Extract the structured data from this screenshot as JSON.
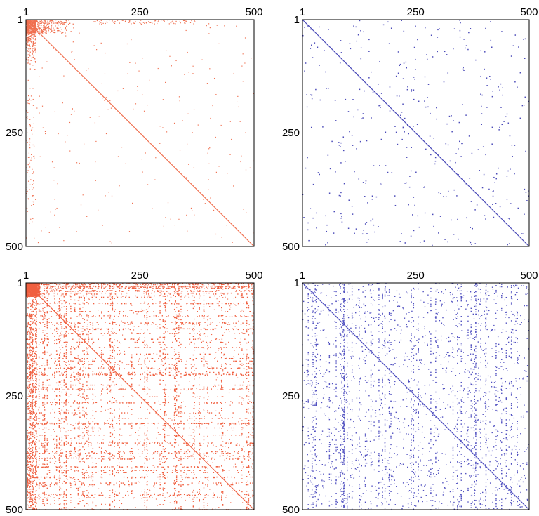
{
  "chart_data": [
    {
      "type": "heatmap",
      "subtype": "sparse-matrix-pattern",
      "color": "#f07050",
      "density": "sparse",
      "xlim": [
        1,
        500
      ],
      "ylim": [
        1,
        500
      ],
      "x_ticks": [
        "1",
        "250",
        "500"
      ],
      "y_ticks": [
        "1",
        "250",
        "500"
      ],
      "diagonal": true,
      "clusters": "top-left corner and left edge"
    },
    {
      "type": "heatmap",
      "subtype": "sparse-matrix-pattern",
      "color": "#4a4ab8",
      "density": "very sparse",
      "xlim": [
        1,
        500
      ],
      "ylim": [
        1,
        500
      ],
      "x_ticks": [
        "1",
        "250",
        "500"
      ],
      "y_ticks": [
        "1",
        "250",
        "500"
      ],
      "diagonal": true,
      "clusters": "uniform scatter"
    },
    {
      "type": "heatmap",
      "subtype": "sparse-matrix-pattern",
      "color": "#f06040",
      "density": "dense",
      "xlim": [
        1,
        500
      ],
      "ylim": [
        1,
        500
      ],
      "x_ticks": [
        "1",
        "250",
        "500"
      ],
      "y_ticks": [
        "1",
        "250",
        "500"
      ],
      "diagonal": true,
      "clusters": "dense top rows and left columns, horizontal and vertical bands"
    },
    {
      "type": "heatmap",
      "subtype": "sparse-matrix-pattern",
      "color": "#5050c0",
      "density": "medium",
      "xlim": [
        1,
        500
      ],
      "ylim": [
        1,
        500
      ],
      "x_ticks": [
        "1",
        "250",
        "500"
      ],
      "y_ticks": [
        "1",
        "250",
        "500"
      ],
      "diagonal": true,
      "clusters": "scattered dots with vertical streaks"
    }
  ]
}
